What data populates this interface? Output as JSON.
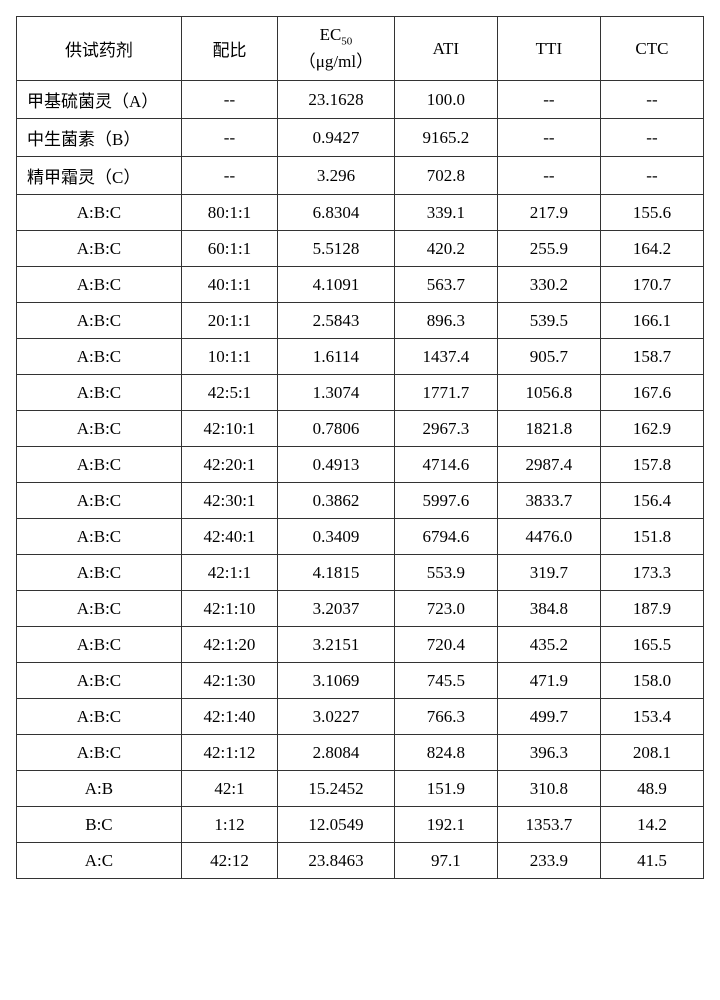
{
  "table": {
    "type": "table",
    "background_color": "#ffffff",
    "border_color": "#333333",
    "text_color": "#000000",
    "font_family": "SimSun",
    "header_fontsize": 17,
    "cell_fontsize": 17,
    "columns": [
      {
        "label": "供试药剂",
        "width_pct": 24,
        "align": "center"
      },
      {
        "label": "配比",
        "width_pct": 14,
        "align": "center"
      },
      {
        "label_html": "EC<sub>50</sub><br>（μg/ml）",
        "label": "EC50 (μg/ml)",
        "width_pct": 17,
        "align": "center"
      },
      {
        "label": "ATI",
        "width_pct": 15,
        "align": "center"
      },
      {
        "label": "TTI",
        "width_pct": 15,
        "align": "center"
      },
      {
        "label": "CTC",
        "width_pct": 15,
        "align": "center"
      }
    ],
    "rows": [
      {
        "cells": [
          "甲基硫菌灵（A）",
          "--",
          "23.1628",
          "100.0",
          "--",
          "--"
        ],
        "align_first": "left"
      },
      {
        "cells": [
          "中生菌素（B）",
          "--",
          "0.9427",
          "9165.2",
          "--",
          "--"
        ],
        "align_first": "left"
      },
      {
        "cells": [
          "精甲霜灵（C）",
          "--",
          "3.296",
          "702.8",
          "--",
          "--"
        ],
        "align_first": "left"
      },
      {
        "cells": [
          "A:B:C",
          "80:1:1",
          "6.8304",
          "339.1",
          "217.9",
          "155.6"
        ]
      },
      {
        "cells": [
          "A:B:C",
          "60:1:1",
          "5.5128",
          "420.2",
          "255.9",
          "164.2"
        ]
      },
      {
        "cells": [
          "A:B:C",
          "40:1:1",
          "4.1091",
          "563.7",
          "330.2",
          "170.7"
        ]
      },
      {
        "cells": [
          "A:B:C",
          "20:1:1",
          "2.5843",
          "896.3",
          "539.5",
          "166.1"
        ]
      },
      {
        "cells": [
          "A:B:C",
          "10:1:1",
          "1.6114",
          "1437.4",
          "905.7",
          "158.7"
        ]
      },
      {
        "cells": [
          "A:B:C",
          "42:5:1",
          "1.3074",
          "1771.7",
          "1056.8",
          "167.6"
        ]
      },
      {
        "cells": [
          "A:B:C",
          "42:10:1",
          "0.7806",
          "2967.3",
          "1821.8",
          "162.9"
        ]
      },
      {
        "cells": [
          "A:B:C",
          "42:20:1",
          "0.4913",
          "4714.6",
          "2987.4",
          "157.8"
        ]
      },
      {
        "cells": [
          "A:B:C",
          "42:30:1",
          "0.3862",
          "5997.6",
          "3833.7",
          "156.4"
        ]
      },
      {
        "cells": [
          "A:B:C",
          "42:40:1",
          "0.3409",
          "6794.6",
          "4476.0",
          "151.8"
        ]
      },
      {
        "cells": [
          "A:B:C",
          "42:1:1",
          "4.1815",
          "553.9",
          "319.7",
          "173.3"
        ]
      },
      {
        "cells": [
          "A:B:C",
          "42:1:10",
          "3.2037",
          "723.0",
          "384.8",
          "187.9"
        ]
      },
      {
        "cells": [
          "A:B:C",
          "42:1:20",
          "3.2151",
          "720.4",
          "435.2",
          "165.5"
        ]
      },
      {
        "cells": [
          "A:B:C",
          "42:1:30",
          "3.1069",
          "745.5",
          "471.9",
          "158.0"
        ]
      },
      {
        "cells": [
          "A:B:C",
          "42:1:40",
          "3.0227",
          "766.3",
          "499.7",
          "153.4"
        ]
      },
      {
        "cells": [
          "A:B:C",
          "42:1:12",
          "2.8084",
          "824.8",
          "396.3",
          "208.1"
        ]
      },
      {
        "cells": [
          "A:B",
          "42:1",
          "15.2452",
          "151.9",
          "310.8",
          "48.9"
        ]
      },
      {
        "cells": [
          "B:C",
          "1:12",
          "12.0549",
          "192.1",
          "1353.7",
          "14.2"
        ]
      },
      {
        "cells": [
          "A:C",
          "42:12",
          "23.8463",
          "97.1",
          "233.9",
          "41.5"
        ]
      }
    ]
  }
}
